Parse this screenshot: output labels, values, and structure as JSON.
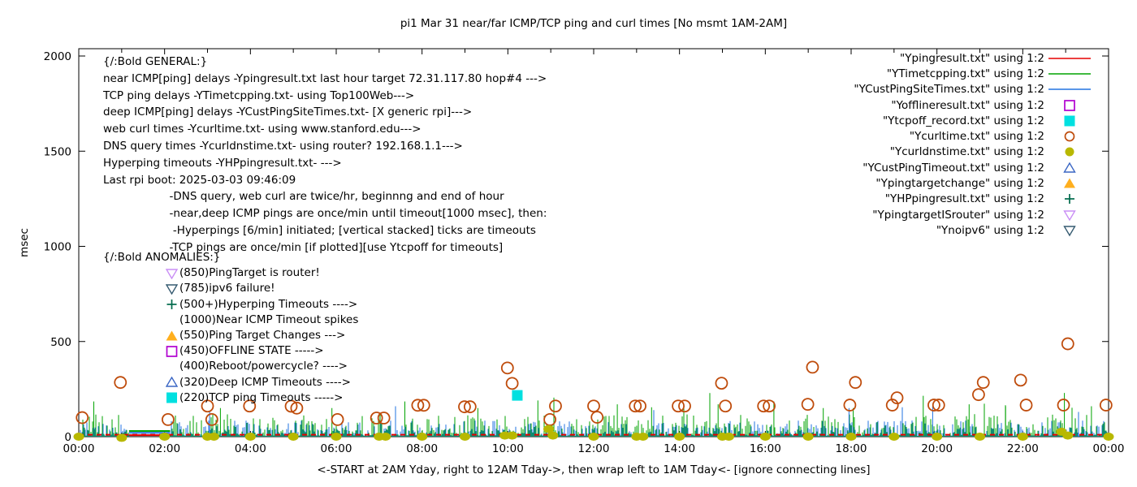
{
  "legend": [
    {
      "label": "\"Ypingresult.txt\" using 1:2",
      "marker": "line",
      "color": "#e60000"
    },
    {
      "label": "\"YTimetcpping.txt\" using 1:2",
      "marker": "line",
      "color": "#00a300"
    },
    {
      "label": "\"YCustPingSiteTimes.txt\" using 1:2",
      "marker": "line",
      "color": "#2273e2"
    },
    {
      "label": "\"Yofflineresult.txt\" using 1:2",
      "marker": "open-square",
      "color": "#b000d0"
    },
    {
      "label": "\"Ytcpoff_record.txt\" using 1:2",
      "marker": "filled-square",
      "color": "#00e0e0"
    },
    {
      "label": "\"Ycurltime.txt\" using 1:2",
      "marker": "open-circle",
      "color": "#bf4c0c"
    },
    {
      "label": "\"Ycurldnstime.txt\" using 1:2",
      "marker": "filled-circle",
      "color": "#b8b800"
    },
    {
      "label": "\"YCustPingTimeout.txt\" using 1:2",
      "marker": "open-triangle-up",
      "color": "#3a66c4"
    },
    {
      "label": "\"Ypingtargetchange\" using 1:2",
      "marker": "filled-triangle-up",
      "color": "#ffaf1e"
    },
    {
      "label": "\"YHPpingresult.txt\" using 1:2",
      "marker": "plus",
      "color": "#00694b"
    },
    {
      "label": "\"YpingtargetISrouter\" using 1:2",
      "marker": "open-triangle-down",
      "color": "#c98ef5"
    },
    {
      "label": "\"Ynoipv6\" using 1:2",
      "marker": "open-triangle-down",
      "color": "#355a70"
    }
  ],
  "annotations": {
    "general_lines": [
      "{/:Bold GENERAL:}",
      "near ICMP[ping] delays -Ypingresult.txt last hour target 72.31.117.80 hop#4 --->",
      "TCP ping delays -YTimetcpping.txt- using Top100Web--->",
      "deep ICMP[ping] delays -YCustPingSiteTimes.txt- [X generic rpi]--->",
      "web curl times -Ycurltime.txt- using www.stanford.edu--->",
      "DNS query times -Ycurldnstime.txt- using router? 192.168.1.1--->",
      "Hyperping timeouts -YHPpingresult.txt- --->",
      "Last rpi boot: 2025-03-03 09:46:09",
      "                   -DNS query, web curl are twice/hr, beginnng and end of hour",
      "                   -near,deep ICMP pings are once/min until timeout[1000 msec], then:",
      "                    -Hyperpings [6/min] initiated; [vertical stacked] ticks are timeouts",
      "                   -TCP pings are once/min [if plotted][use Ytcpoff for timeouts]"
    ],
    "anomalies_header": "{/:Bold ANOMALIES:}",
    "anomalies": [
      {
        "marker": "open-triangle-down",
        "color": "#c98ef5",
        "text": "(850)PingTarget is router!"
      },
      {
        "marker": "open-triangle-down",
        "color": "#355a70",
        "text": "(785)ipv6 failure!"
      },
      {
        "marker": "plus",
        "color": "#00694b",
        "text": "(500+)Hyperping Timeouts ---->"
      },
      {
        "marker": "none",
        "color": "",
        "text": "(1000)Near ICMP Timeout spikes"
      },
      {
        "marker": "filled-triangle-up",
        "color": "#ffaf1e",
        "text": "(550)Ping Target Changes --->"
      },
      {
        "marker": "open-square",
        "color": "#b000d0",
        "text": "(450)OFFLINE STATE ----->"
      },
      {
        "marker": "none",
        "color": "",
        "text": "(400)Reboot/powercycle? ---->"
      },
      {
        "marker": "open-triangle-up",
        "color": "#3a66c4",
        "text": "(320)Deep ICMP Timeouts ---->"
      },
      {
        "marker": "filled-square",
        "color": "#00e0e0",
        "text": "(220)TCP ping Timeouts ----->"
      }
    ]
  },
  "chart_data": {
    "type": "line+scatter",
    "title": "pi1 Mar 31  near/far ICMP/TCP ping and curl times [No msmt 1AM-2AM]",
    "xlabel": "<-START at 2AM Yday, right to 12AM Tday->, then wrap left to 1AM Tday<- [ignore connecting lines]",
    "ylabel": "msec",
    "ylim": [
      0,
      2000
    ],
    "y_tick_values": [
      0,
      500,
      1000,
      1500,
      2000
    ],
    "y_tick_labels": [
      "0",
      "500",
      "1000",
      "1500",
      "2000"
    ],
    "x_tick_hours": [
      0,
      2,
      4,
      6,
      8,
      10,
      12,
      14,
      16,
      18,
      20,
      22,
      24
    ],
    "x_tick_labels": [
      "00:00",
      "02:00",
      "04:00",
      "06:00",
      "08:00",
      "10:00",
      "12:00",
      "14:00",
      "16:00",
      "18:00",
      "20:00",
      "22:00",
      "00:00"
    ],
    "grid": false,
    "legend_position": "top-right",
    "no_measurement_gap_hours": [
      1.17,
      2.13
    ],
    "series": [
      {
        "name": "Ypingresult.txt",
        "type": "baseline-dashed",
        "color": "#e60000",
        "baseline_msec": 10,
        "gap_flat_msec": 8
      },
      {
        "name": "YTimetcpping.txt",
        "type": "noise-spikes",
        "color": "#00a300",
        "range_msec": [
          0,
          230
        ],
        "gap_flat_msec": 30
      },
      {
        "name": "YCustPingSiteTimes.txt",
        "type": "noise-spikes",
        "color": "#2273e2",
        "range_msec": [
          0,
          160
        ],
        "gap_flat_msec": 20
      },
      {
        "name": "Ycurltime.txt",
        "type": "scatter",
        "marker": "open-circle",
        "color": "#bf4c0c",
        "points": [
          [
            0.08,
            100
          ],
          [
            0.97,
            285
          ],
          [
            2.08,
            90
          ],
          [
            3.0,
            161
          ],
          [
            3.1,
            90
          ],
          [
            3.98,
            161
          ],
          [
            4.95,
            160
          ],
          [
            5.08,
            150
          ],
          [
            6.03,
            90
          ],
          [
            6.94,
            98
          ],
          [
            7.11,
            98
          ],
          [
            7.9,
            165
          ],
          [
            8.04,
            165
          ],
          [
            8.99,
            157
          ],
          [
            9.12,
            157
          ],
          [
            9.99,
            361
          ],
          [
            10.1,
            280
          ],
          [
            10.98,
            90
          ],
          [
            11.11,
            161
          ],
          [
            12.0,
            161
          ],
          [
            12.08,
            102
          ],
          [
            12.97,
            161
          ],
          [
            13.08,
            161
          ],
          [
            13.97,
            161
          ],
          [
            14.12,
            161
          ],
          [
            14.98,
            281
          ],
          [
            15.07,
            161
          ],
          [
            15.96,
            161
          ],
          [
            16.09,
            161
          ],
          [
            16.99,
            170
          ],
          [
            17.1,
            365
          ],
          [
            17.97,
            166
          ],
          [
            18.1,
            285
          ],
          [
            18.96,
            166
          ],
          [
            19.07,
            204
          ],
          [
            19.93,
            166
          ],
          [
            20.04,
            166
          ],
          [
            20.97,
            221
          ],
          [
            21.08,
            285
          ],
          [
            21.95,
            297
          ],
          [
            22.08,
            166
          ],
          [
            22.95,
            166
          ],
          [
            23.05,
            488
          ],
          [
            23.94,
            166
          ]
        ]
      },
      {
        "name": "Ycurldnstime.txt",
        "type": "scatter",
        "marker": "filled-circle",
        "color": "#b8b800",
        "points": [
          [
            0,
            0
          ],
          [
            1,
            -6
          ],
          [
            2,
            0
          ],
          [
            3,
            0
          ],
          [
            3.15,
            0
          ],
          [
            4,
            0
          ],
          [
            5,
            0
          ],
          [
            6,
            0
          ],
          [
            7,
            0
          ],
          [
            7.15,
            0
          ],
          [
            8,
            0
          ],
          [
            9,
            0
          ],
          [
            9.93,
            6
          ],
          [
            10.1,
            6
          ],
          [
            10.95,
            40
          ],
          [
            11.05,
            6
          ],
          [
            12,
            0
          ],
          [
            13,
            0
          ],
          [
            13.15,
            0
          ],
          [
            14,
            0
          ],
          [
            15,
            0
          ],
          [
            15.15,
            0
          ],
          [
            16,
            0
          ],
          [
            17,
            0
          ],
          [
            18,
            0
          ],
          [
            19,
            0
          ],
          [
            20,
            0
          ],
          [
            21,
            0
          ],
          [
            22,
            0
          ],
          [
            22.9,
            26
          ],
          [
            23.05,
            6
          ],
          [
            24,
            0
          ]
        ]
      },
      {
        "name": "Ytcpoff_record.txt",
        "type": "scatter",
        "marker": "filled-square",
        "color": "#00e0e0",
        "points": [
          [
            10.22,
            217
          ]
        ]
      }
    ],
    "notable_green_spikes": [
      [
        0.35,
        185
      ],
      [
        3.3,
        150
      ],
      [
        5.9,
        150
      ],
      [
        7.6,
        185
      ],
      [
        9.3,
        150
      ],
      [
        10.7,
        190
      ],
      [
        12.55,
        170
      ],
      [
        13.35,
        155
      ],
      [
        14.9,
        170
      ],
      [
        16.2,
        185
      ],
      [
        17.35,
        150
      ],
      [
        18.05,
        150
      ],
      [
        19.68,
        215
      ],
      [
        20.75,
        170
      ],
      [
        21.6,
        160
      ],
      [
        22.97,
        230
      ],
      [
        23.6,
        160
      ]
    ],
    "notable_blue_spikes": [
      [
        3.05,
        130
      ],
      [
        13.4,
        140
      ],
      [
        17.95,
        150
      ],
      [
        19.9,
        160
      ],
      [
        23.3,
        130
      ]
    ]
  }
}
